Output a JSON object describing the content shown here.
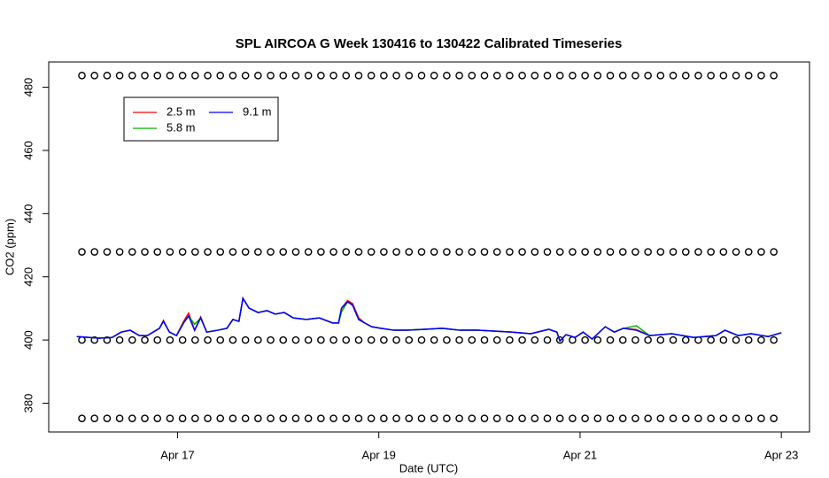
{
  "chart_data": {
    "type": "line",
    "title": "SPL AIRCOA G  Week 130416 to 130422  Calibrated Timeseries",
    "x_label": "Date (UTC)",
    "y_label": "CO2 (ppm)",
    "xlim": [
      15.72,
      23.28
    ],
    "xticks": [
      {
        "value": 17,
        "label": "Apr 17"
      },
      {
        "value": 19,
        "label": "Apr 19"
      },
      {
        "value": 21,
        "label": "Apr 21"
      },
      {
        "value": 23,
        "label": "Apr 23"
      }
    ],
    "ylim": [
      370.9,
      488
    ],
    "yticks": [
      380,
      400,
      420,
      440,
      460,
      480
    ],
    "grid": false,
    "legend": "topleft",
    "x": [
      16.0,
      16.22,
      16.35,
      16.44,
      16.53,
      16.62,
      16.7,
      16.82,
      16.86,
      16.92,
      16.99,
      17.06,
      17.11,
      17.17,
      17.23,
      17.29,
      17.4,
      17.49,
      17.55,
      17.61,
      17.65,
      17.71,
      17.8,
      17.89,
      17.97,
      18.06,
      18.15,
      18.28,
      18.41,
      18.54,
      18.6,
      18.63,
      18.69,
      18.74,
      18.8,
      18.86,
      18.93,
      19.02,
      19.15,
      19.28,
      19.46,
      19.63,
      19.81,
      19.98,
      20.16,
      20.33,
      20.51,
      20.69,
      20.77,
      20.8,
      20.86,
      20.95,
      21.03,
      21.12,
      21.25,
      21.34,
      21.43,
      21.56,
      21.69,
      21.91,
      22.13,
      22.35,
      22.44,
      22.57,
      22.7,
      22.87,
      23.0
    ],
    "series": [
      {
        "name": "2.5 m",
        "color": "#ff0000",
        "values": [
          401.1,
          400.6,
          400.8,
          402.5,
          403.1,
          401.4,
          401.4,
          403.7,
          406.2,
          402.5,
          401.4,
          405.9,
          408.5,
          403.1,
          407.3,
          402.5,
          403.1,
          403.7,
          406.5,
          405.9,
          413.2,
          410.1,
          408.7,
          409.3,
          408.2,
          408.7,
          407.0,
          406.5,
          407.0,
          405.4,
          405.4,
          410.1,
          412.5,
          411.5,
          407.0,
          405.4,
          404.2,
          403.7,
          403.1,
          403.1,
          403.4,
          403.7,
          403.1,
          403.1,
          402.8,
          402.5,
          402.0,
          403.4,
          402.5,
          399.7,
          401.7,
          400.8,
          402.5,
          400.3,
          404.2,
          402.5,
          403.7,
          403.3,
          401.4,
          402.0,
          400.8,
          401.4,
          403.1,
          401.4,
          402.0,
          401.1,
          402.3
        ]
      },
      {
        "name": "5.8 m",
        "color": "#00b000",
        "values": [
          401.1,
          400.6,
          400.8,
          402.5,
          403.1,
          401.4,
          401.4,
          403.7,
          405.9,
          402.5,
          401.4,
          405.4,
          407.6,
          405.0,
          407.0,
          402.5,
          403.1,
          403.7,
          406.5,
          405.9,
          413.2,
          410.1,
          408.7,
          409.3,
          408.2,
          408.7,
          407.0,
          406.5,
          407.0,
          405.4,
          405.4,
          409.0,
          412.1,
          411.0,
          406.5,
          405.4,
          404.2,
          403.7,
          403.1,
          403.1,
          403.4,
          403.7,
          403.1,
          403.1,
          402.8,
          402.5,
          402.0,
          403.4,
          402.5,
          399.7,
          401.7,
          400.8,
          402.5,
          400.3,
          404.2,
          402.5,
          403.7,
          404.5,
          401.4,
          402.0,
          400.8,
          401.4,
          403.1,
          401.4,
          402.0,
          401.1,
          402.3
        ]
      },
      {
        "name": "9.1 m",
        "color": "#0000ff",
        "values": [
          401.1,
          400.6,
          400.8,
          402.5,
          403.1,
          401.4,
          401.4,
          403.7,
          405.9,
          402.5,
          401.4,
          405.4,
          407.6,
          403.1,
          407.0,
          402.5,
          403.1,
          403.7,
          406.5,
          405.9,
          413.2,
          410.1,
          408.7,
          409.3,
          408.2,
          408.7,
          407.0,
          406.5,
          407.0,
          405.4,
          405.4,
          410.1,
          412.1,
          411.0,
          406.5,
          405.4,
          404.2,
          403.7,
          403.1,
          403.1,
          403.4,
          403.7,
          403.1,
          403.1,
          402.8,
          402.5,
          402.0,
          403.4,
          402.5,
          399.7,
          401.7,
          400.8,
          402.5,
          400.3,
          404.2,
          402.5,
          403.7,
          403.1,
          401.4,
          402.0,
          400.8,
          401.4,
          403.1,
          401.4,
          402.0,
          401.1,
          402.3
        ]
      }
    ],
    "calibration": {
      "x": [
        16.05,
        16.175,
        16.3,
        16.425,
        16.55,
        16.675,
        16.8,
        16.925,
        17.05,
        17.175,
        17.3,
        17.425,
        17.55,
        17.675,
        17.8,
        17.925,
        18.05,
        18.175,
        18.3,
        18.425,
        18.55,
        18.675,
        18.8,
        18.925,
        19.05,
        19.175,
        19.3,
        19.425,
        19.55,
        19.675,
        19.8,
        19.925,
        20.05,
        20.175,
        20.3,
        20.425,
        20.55,
        20.675,
        20.8,
        20.925,
        21.05,
        21.175,
        21.3,
        21.425,
        21.55,
        21.675,
        21.8,
        21.925,
        22.05,
        22.175,
        22.3,
        22.425,
        22.55,
        22.675,
        22.8,
        22.925
      ],
      "levels": [
        375.2,
        400,
        427.9,
        483.7
      ]
    }
  }
}
